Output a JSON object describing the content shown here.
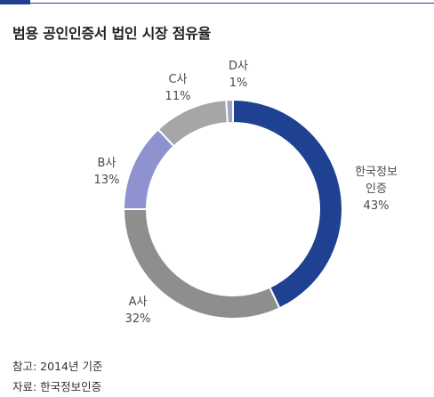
{
  "title": "범용 공인인증서 법인 시장 점유율",
  "chart_data": {
    "type": "donut",
    "title": "범용 공인인증서 법인 시장 점유율",
    "unit": "%",
    "slices": [
      {
        "label": [
          "한국정보",
          "인증"
        ],
        "value": 43,
        "value_label": "43%",
        "color": "#1f4192"
      },
      {
        "label": [
          "A사"
        ],
        "value": 32,
        "value_label": "32%",
        "color": "#8e8e8e"
      },
      {
        "label": [
          "B사"
        ],
        "value": 13,
        "value_label": "13%",
        "color": "#8e93cf"
      },
      {
        "label": [
          "C사"
        ],
        "value": 11,
        "value_label": "11%",
        "color": "#a4a6a8"
      },
      {
        "label": [
          "D사"
        ],
        "value": 1,
        "value_label": "1%",
        "color": "#9fa5c6"
      }
    ]
  },
  "footer": {
    "note": "참고: 2014년 기준",
    "source": "자료: 한국정보인증"
  }
}
